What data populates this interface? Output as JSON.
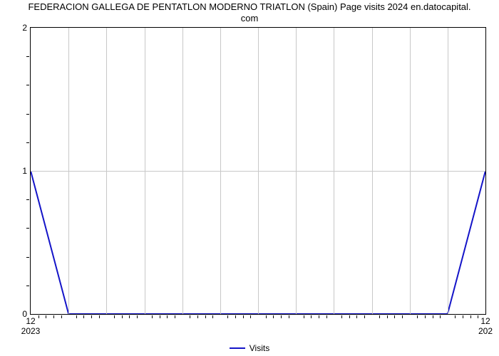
{
  "chart": {
    "type": "line",
    "title_line1": "FEDERACION GALLEGA DE PENTATLON MODERNO TRIATLON (Spain) Page visits 2024 en.datocapital.",
    "title_line2": "com",
    "title_fontsize": 13,
    "title_color": "#000000",
    "background_color": "#ffffff",
    "plot_border_color": "#000000",
    "grid_color": "#c8c8c8",
    "axis_tick_color": "#000000",
    "label_fontsize": 12,
    "label_color": "#000000",
    "ylim": [
      0,
      2
    ],
    "y_major_ticks": [
      0,
      1,
      2
    ],
    "y_minor_per_major": 4,
    "x_count": 13,
    "x_major_labels_top": [
      "12",
      "12"
    ],
    "x_major_labels_bottom": [
      "2023",
      "202"
    ],
    "x_minor_per_major": 4,
    "series": {
      "name": "Visits",
      "color": "#1414c8",
      "line_width": 2,
      "values": [
        1,
        0,
        0,
        0,
        0,
        0,
        0,
        0,
        0,
        0,
        0,
        0,
        1
      ]
    },
    "legend": {
      "label": "Visits",
      "swatch_color": "#1414c8",
      "swatch_width": 22,
      "swatch_line_width": 2
    }
  }
}
